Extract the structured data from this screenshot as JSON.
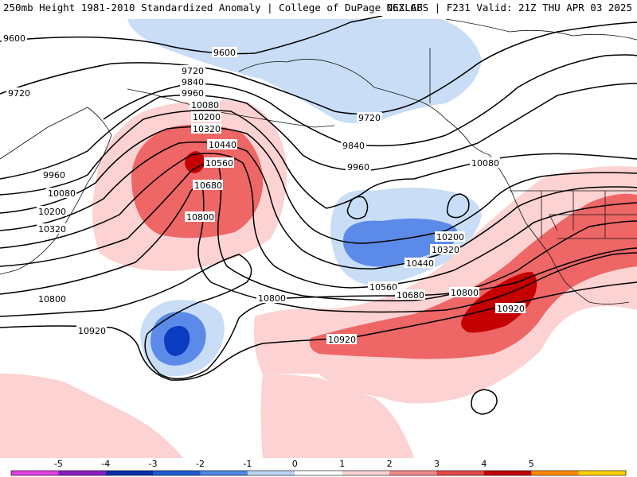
{
  "header": {
    "left_title": "250mb Height 1981-2010 Standardized Anomaly | College of DuPage NEXLAB",
    "right_title": "06Z GFS | F231 Valid: 21Z THU APR 03 2025"
  },
  "contour_labels": [
    "9600",
    "9600",
    "9720",
    "9720",
    "9720",
    "9840",
    "9840",
    "9960",
    "9960",
    "9960",
    "10080",
    "10080",
    "10080",
    "10200",
    "10200",
    "10200",
    "10320",
    "10320",
    "10320",
    "10440",
    "10440",
    "10560",
    "10560",
    "10680",
    "10680",
    "10800",
    "10800",
    "10800",
    "10920",
    "10920",
    "10920"
  ],
  "colorbar": {
    "ticks": [
      "-5",
      "-4",
      "-3",
      "-2",
      "-1",
      "0",
      "1",
      "2",
      "3",
      "4",
      "5"
    ],
    "colors": [
      "#e040e0",
      "#8a1ec0",
      "#0a2ea8",
      "#1e5ccf",
      "#4f86e6",
      "#b9d3f3",
      "#ffffff",
      "#fbd3d3",
      "#f08a8a",
      "#e24848",
      "#c00000",
      "#ff8c00",
      "#ffd000"
    ]
  }
}
